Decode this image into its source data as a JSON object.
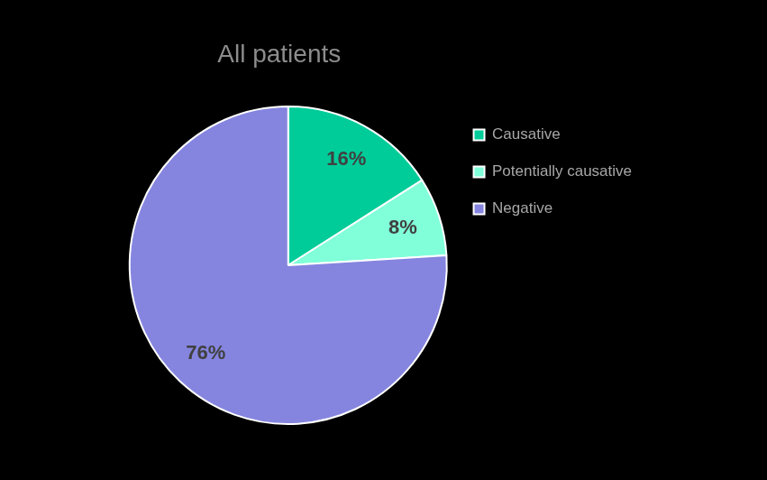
{
  "chart_data": {
    "type": "pie",
    "title": "All patients",
    "categories": [
      "Causative",
      "Potentially causative",
      "Negative"
    ],
    "values": [
      16,
      8,
      76
    ],
    "value_labels": [
      "16%",
      "8%",
      "76%"
    ],
    "colors": [
      "#00cc99",
      "#80ffd9",
      "#8585e0"
    ],
    "data_labels": true,
    "legend": "right"
  }
}
